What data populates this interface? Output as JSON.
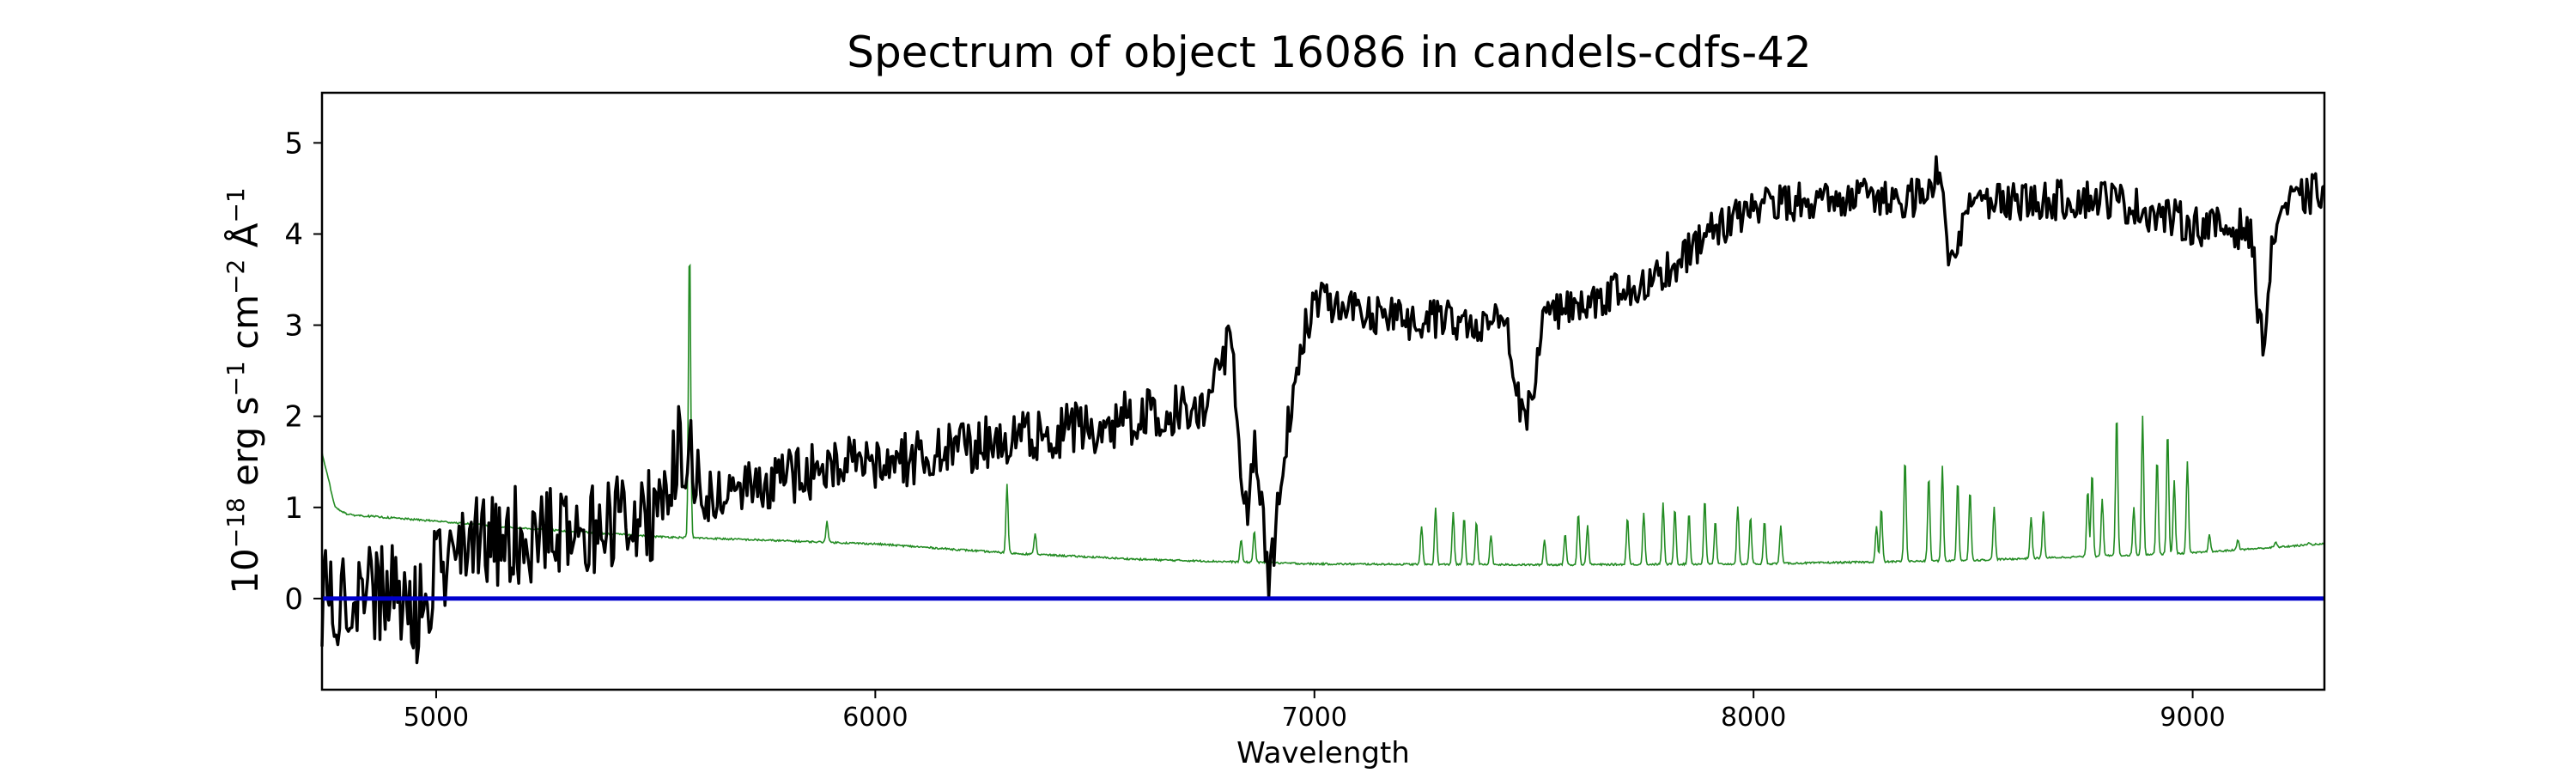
{
  "chart_data": {
    "type": "line",
    "title": "Spectrum of object 16086 in candels-cdfs-42",
    "xlabel": "Wavelength",
    "ylabel": {
      "base": "10",
      "exp": "−18",
      "unit1": " erg s",
      "exp1": "−1",
      "unit2": " cm",
      "exp2": "−2",
      "unit3": " Å",
      "exp3": "−1"
    },
    "xlim": [
      4740,
      9300
    ],
    "ylim": [
      -1.0,
      5.55
    ],
    "xticks": [
      5000,
      6000,
      7000,
      8000,
      9000
    ],
    "xtick_labels": [
      "5000",
      "6000",
      "7000",
      "8000",
      "9000"
    ],
    "yticks": [
      0,
      1,
      2,
      3,
      4,
      5
    ],
    "ytick_labels": [
      "0",
      "1",
      "2",
      "3",
      "4",
      "5"
    ],
    "grid": false,
    "series": [
      {
        "role": "flux",
        "color": "#000000",
        "x_range": [
          4740,
          9300
        ],
        "trend": [
          [
            4740,
            0.0
          ],
          [
            4900,
            0.1
          ],
          [
            5000,
            0.55
          ],
          [
            5200,
            0.7
          ],
          [
            5400,
            0.8
          ],
          [
            5550,
            1.0
          ],
          [
            5700,
            1.2
          ],
          [
            5900,
            1.45
          ],
          [
            6100,
            1.55
          ],
          [
            6300,
            1.75
          ],
          [
            6500,
            1.9
          ],
          [
            6700,
            2.1
          ],
          [
            6800,
            2.3
          ],
          [
            6900,
            2.6
          ],
          [
            7000,
            3.3
          ],
          [
            7200,
            3.05
          ],
          [
            7400,
            3.05
          ],
          [
            7600,
            3.2
          ],
          [
            7800,
            3.6
          ],
          [
            7900,
            4.0
          ],
          [
            8000,
            4.3
          ],
          [
            8200,
            4.4
          ],
          [
            8400,
            4.4
          ],
          [
            8600,
            4.35
          ],
          [
            8800,
            4.4
          ],
          [
            9000,
            4.1
          ],
          [
            9100,
            4.05
          ],
          [
            9300,
            4.5
          ]
        ],
        "features": [
          [
            4960,
            -0.55,
            35
          ],
          [
            5030,
            -0.2,
            25
          ],
          [
            5560,
            0.6,
            30
          ],
          [
            6840,
            -1.6,
            20
          ],
          [
            6895,
            -1.9,
            25
          ],
          [
            6930,
            -1.0,
            35
          ],
          [
            7480,
            -1.1,
            30
          ],
          [
            8450,
            -0.7,
            25
          ],
          [
            9160,
            -1.3,
            20
          ],
          [
            6810,
            0.5,
            25
          ],
          [
            8420,
            0.5,
            15
          ]
        ]
      },
      {
        "role": "error",
        "color": "#228b22",
        "x_range": [
          4740,
          9300
        ],
        "trend": [
          [
            4740,
            1.6
          ],
          [
            4770,
            1.0
          ],
          [
            4800,
            0.92
          ],
          [
            5000,
            0.85
          ],
          [
            5200,
            0.77
          ],
          [
            5500,
            0.68
          ],
          [
            6000,
            0.6
          ],
          [
            6300,
            0.5
          ],
          [
            6600,
            0.43
          ],
          [
            7000,
            0.38
          ],
          [
            7500,
            0.37
          ],
          [
            8000,
            0.38
          ],
          [
            8500,
            0.42
          ],
          [
            9000,
            0.5
          ],
          [
            9300,
            0.6
          ]
        ],
        "peaks": [
          [
            5577,
            3.9
          ],
          [
            5890,
            0.85
          ],
          [
            6300,
            1.25
          ],
          [
            6364,
            0.72
          ],
          [
            6833,
            0.65
          ],
          [
            6863,
            0.75
          ],
          [
            7244,
            0.8
          ],
          [
            7276,
            1.0
          ],
          [
            7316,
            0.95
          ],
          [
            7341,
            0.9
          ],
          [
            7369,
            0.85
          ],
          [
            7402,
            0.7
          ],
          [
            7524,
            0.65
          ],
          [
            7571,
            0.72
          ],
          [
            7601,
            0.95
          ],
          [
            7622,
            0.8
          ],
          [
            7713,
            0.9
          ],
          [
            7750,
            0.95
          ],
          [
            7794,
            1.05
          ],
          [
            7821,
            1.0
          ],
          [
            7853,
            0.95
          ],
          [
            7889,
            1.1
          ],
          [
            7913,
            0.85
          ],
          [
            7964,
            1.0
          ],
          [
            7993,
            0.9
          ],
          [
            8025,
            0.85
          ],
          [
            8062,
            0.8
          ],
          [
            8280,
            0.8
          ],
          [
            8291,
            1.0
          ],
          [
            8345,
            1.55
          ],
          [
            8399,
            1.35
          ],
          [
            8430,
            1.45
          ],
          [
            8465,
            1.3
          ],
          [
            8493,
            1.2
          ],
          [
            8548,
            1.0
          ],
          [
            8632,
            0.9
          ],
          [
            8660,
            0.95
          ],
          [
            8761,
            1.2
          ],
          [
            8771,
            1.4
          ],
          [
            8794,
            1.1
          ],
          [
            8827,
            2.05
          ],
          [
            8866,
            1.0
          ],
          [
            8886,
            2.0
          ],
          [
            8919,
            1.55
          ],
          [
            8943,
            1.85
          ],
          [
            8958,
            1.3
          ],
          [
            8988,
            1.5
          ],
          [
            9038,
            0.7
          ],
          [
            9103,
            0.65
          ],
          [
            9189,
            0.62
          ],
          [
            9264,
            0.62
          ]
        ]
      },
      {
        "role": "zero",
        "color": "#0000cc",
        "x": [
          4740,
          9300
        ],
        "values": [
          0,
          0
        ]
      }
    ]
  }
}
